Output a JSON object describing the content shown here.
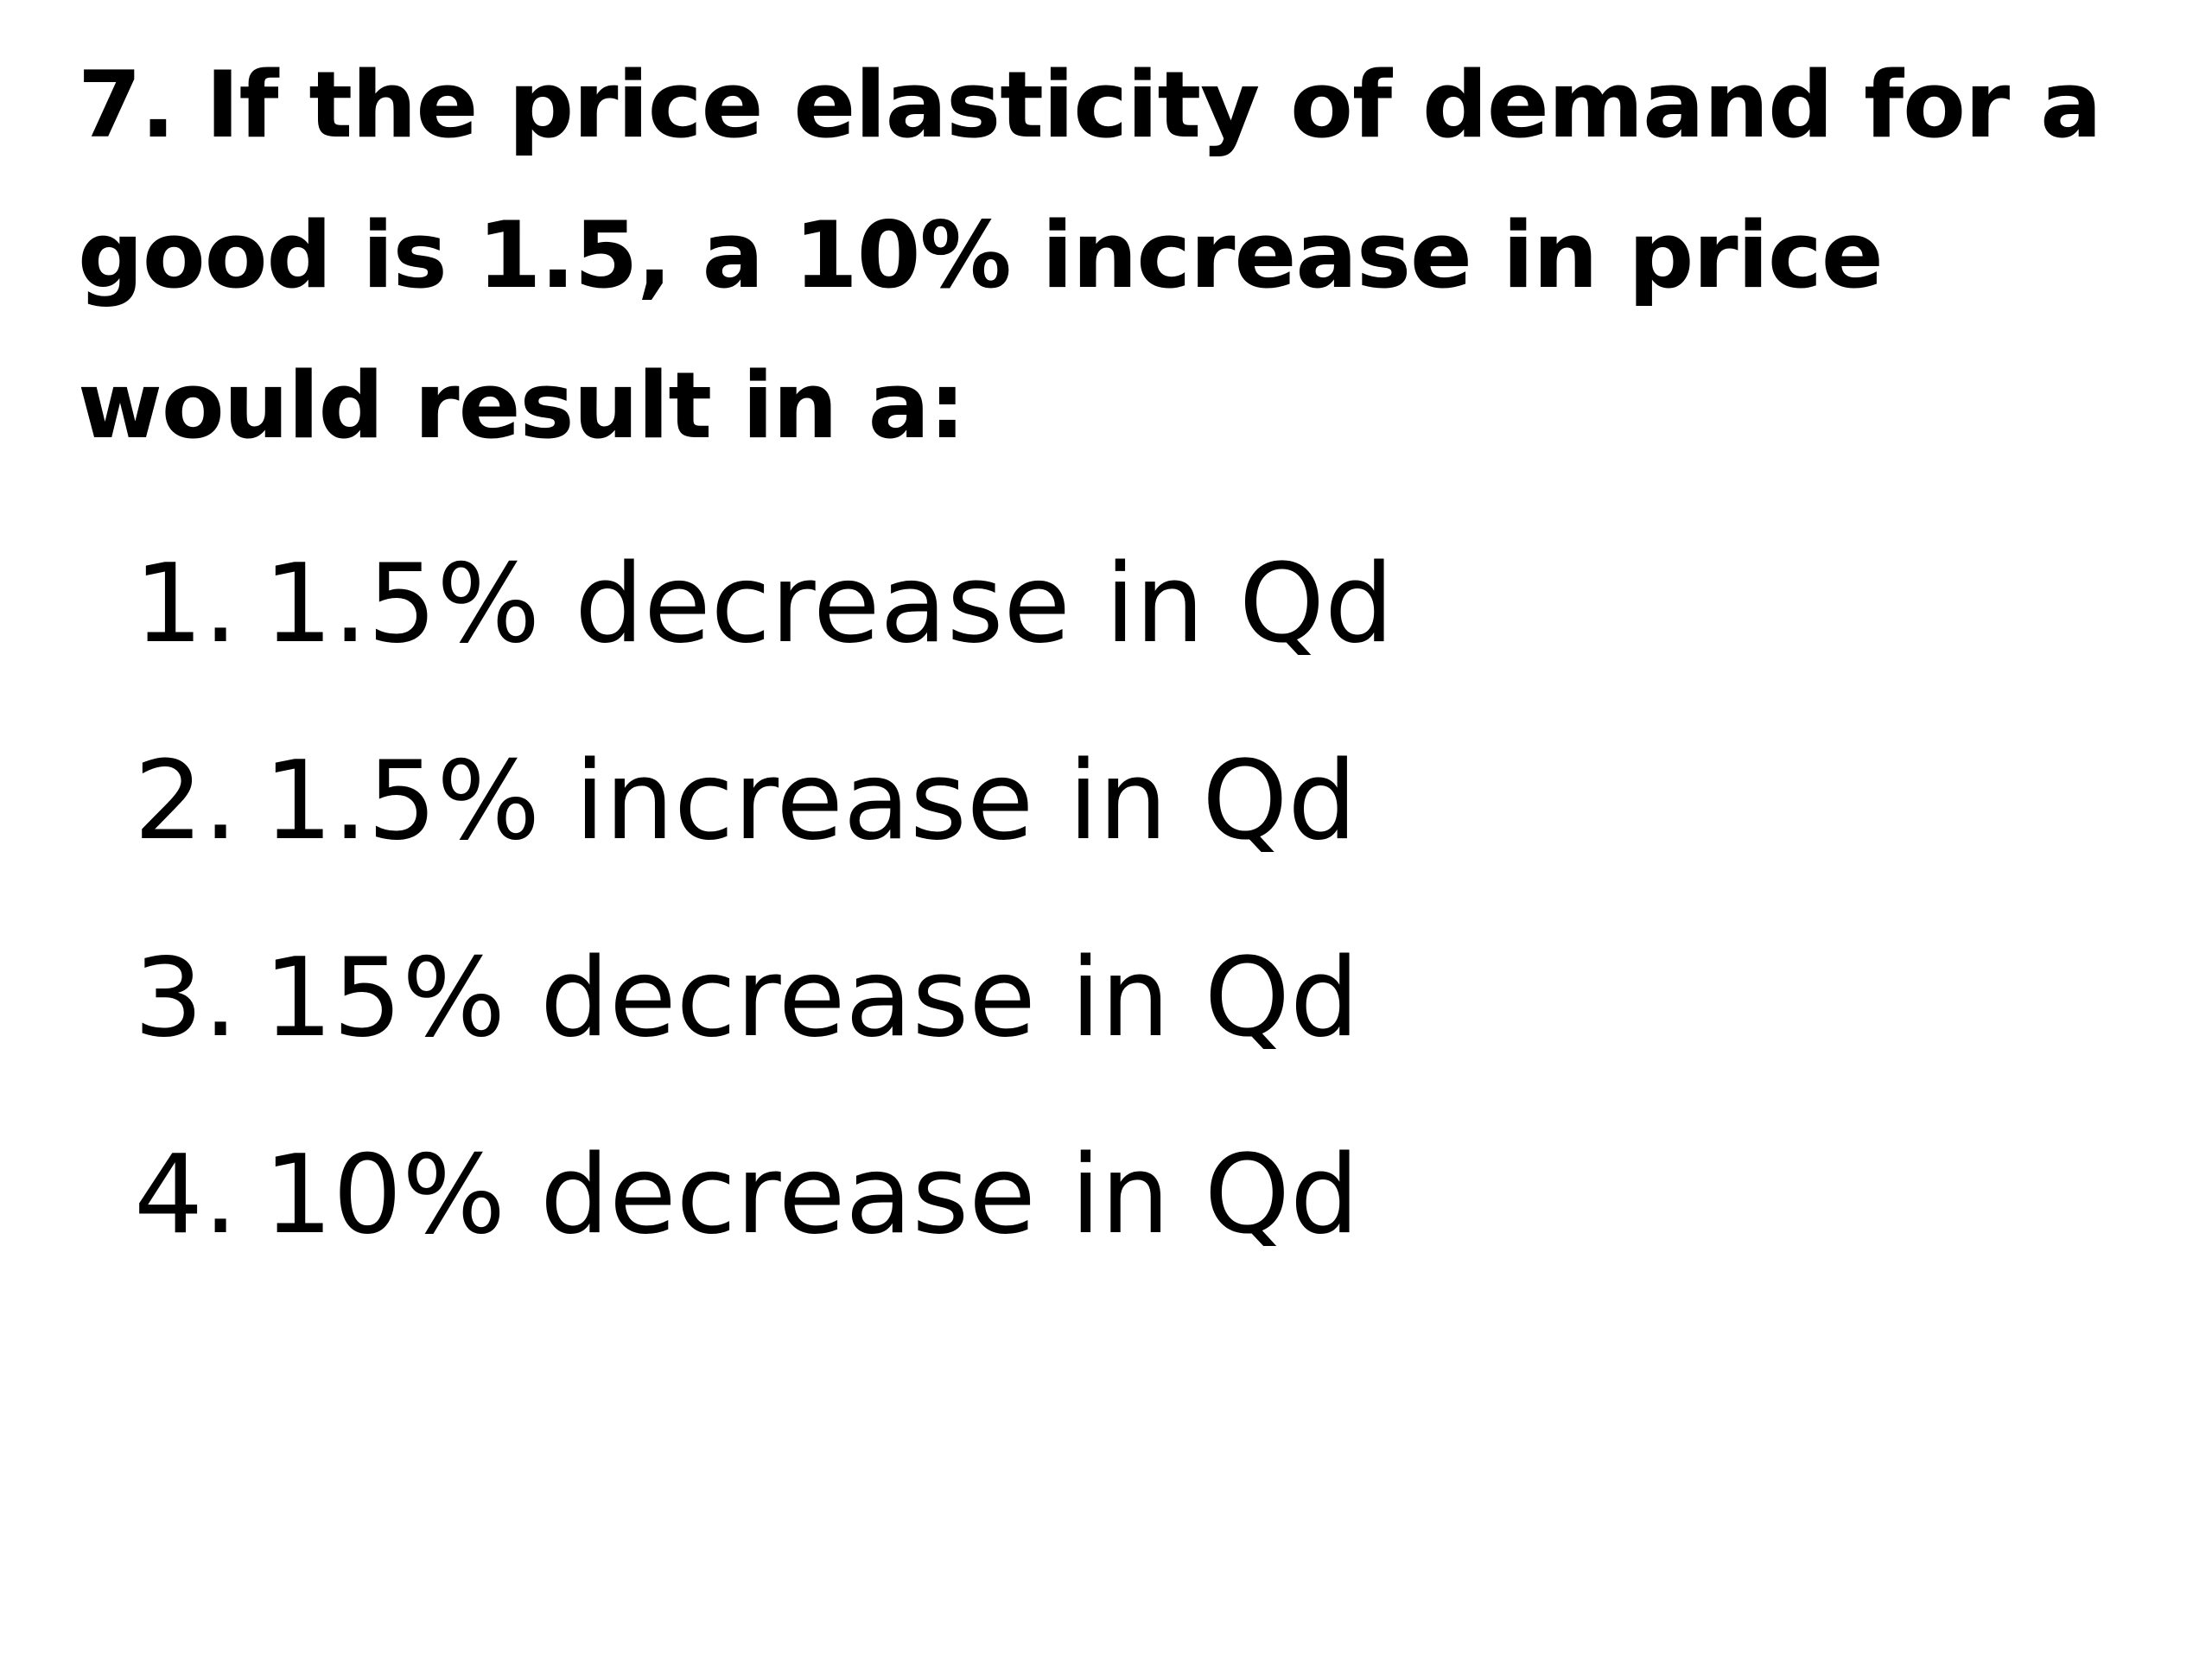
{
  "question": {
    "lines": [
      "7. If the price elasticity of demand for a",
      "good is 1.5, a 10% increase in price",
      "would result in a:"
    ]
  },
  "options": [
    {
      "number": "1.",
      "text": "1.5% decrease in Qd"
    },
    {
      "number": "2.",
      "text": "1.5% increase in Qd"
    },
    {
      "number": "3.",
      "text": "15% decrease in Qd"
    },
    {
      "number": "4.",
      "text": "10% decrease in Qd"
    }
  ]
}
